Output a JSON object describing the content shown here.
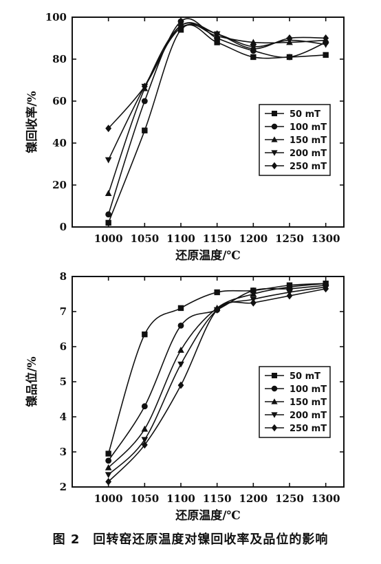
{
  "caption": "图 2　回转窑还原温度对镍回收率及品位的影响",
  "chart_data": [
    {
      "type": "line",
      "xlabel": "还原温度/℃",
      "ylabel": "镍回收率/%",
      "x": [
        1000,
        1050,
        1100,
        1150,
        1200,
        1250,
        1300
      ],
      "xlim": [
        950,
        1325
      ],
      "ylim": [
        0,
        100
      ],
      "xticks": [
        "1000",
        "1050",
        "1100",
        "1150",
        "1200",
        "1250",
        "1300"
      ],
      "yticks": [
        "0",
        "20",
        "40",
        "60",
        "80",
        "100"
      ],
      "legend_position": "right-middle",
      "series": [
        {
          "name": "50 mT",
          "marker": "square",
          "values": [
            2,
            46,
            94,
            88,
            81,
            81,
            82
          ]
        },
        {
          "name": "100 mT",
          "marker": "circle",
          "values": [
            6,
            60,
            98,
            90,
            84,
            81,
            88
          ]
        },
        {
          "name": "150 mT",
          "marker": "triangle",
          "values": [
            16,
            66,
            96,
            91,
            88,
            88,
            89
          ]
        },
        {
          "name": "200 mT",
          "marker": "tri-down",
          "values": [
            32,
            67,
            95,
            92,
            86,
            89,
            87
          ]
        },
        {
          "name": "250 mT",
          "marker": "diamond",
          "values": [
            47,
            67,
            96,
            92,
            85,
            90,
            90
          ]
        }
      ]
    },
    {
      "type": "line",
      "xlabel": "还原温度/℃",
      "ylabel": "镍品位/%",
      "x": [
        1000,
        1050,
        1100,
        1150,
        1200,
        1250,
        1300
      ],
      "xlim": [
        950,
        1325
      ],
      "ylim": [
        2,
        8
      ],
      "xticks": [
        "1000",
        "1050",
        "1100",
        "1150",
        "1200",
        "1250",
        "1300"
      ],
      "yticks": [
        "2",
        "3",
        "4",
        "5",
        "6",
        "7",
        "8"
      ],
      "legend_position": "right-middle",
      "series": [
        {
          "name": "50 mT",
          "marker": "square",
          "values": [
            2.95,
            6.35,
            7.1,
            7.55,
            7.6,
            7.75,
            7.8
          ]
        },
        {
          "name": "100 mT",
          "marker": "circle",
          "values": [
            2.75,
            4.3,
            6.6,
            7.05,
            7.6,
            7.65,
            7.75
          ]
        },
        {
          "name": "150 mT",
          "marker": "triangle",
          "values": [
            2.55,
            3.65,
            5.9,
            7.1,
            7.5,
            7.7,
            7.8
          ]
        },
        {
          "name": "200 mT",
          "marker": "tri-down",
          "values": [
            2.35,
            3.35,
            5.5,
            7.05,
            7.35,
            7.55,
            7.7
          ]
        },
        {
          "name": "250 mT",
          "marker": "diamond",
          "values": [
            2.15,
            3.2,
            4.9,
            7.05,
            7.25,
            7.45,
            7.65
          ]
        }
      ]
    }
  ]
}
